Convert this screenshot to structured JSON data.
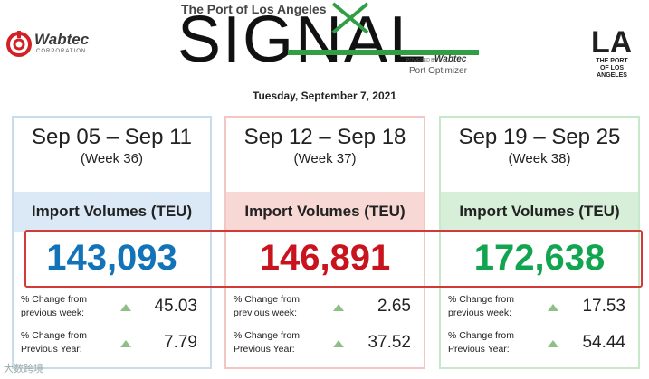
{
  "header": {
    "left_logo": {
      "name": "Wabtec",
      "subtitle": "CORPORATION"
    },
    "signal_subtitle": "The Port of Los Angeles",
    "signal_word": "SIGNAL",
    "powered_by": "POWERED BY",
    "powered_brand": "Wabtec",
    "product": "Port Optimizer",
    "right_logo": {
      "name": "LA",
      "subtitle_line1": "THE PORT",
      "subtitle_line2": "OF LOS ANGELES"
    },
    "date": "Tuesday, September 7, 2021"
  },
  "colors": {
    "blue": "#1273b8",
    "red": "#c8141e",
    "green": "#12a550",
    "highlight": "#d23a3a",
    "arrow_up": "#8fbf84"
  },
  "cards": [
    {
      "range": "Sep 05 – Sep 11",
      "week": "(Week 36)",
      "band_label": "Import Volumes (TEU)",
      "volume": "143,093",
      "change_week_label_1": "% Change from",
      "change_week_label_2": "previous week:",
      "change_week_value": "45.03",
      "change_year_label_1": "% Change from",
      "change_year_label_2": "Previous Year:",
      "change_year_value": "7.79"
    },
    {
      "range": "Sep 12 – Sep 18",
      "week": "(Week 37)",
      "band_label": "Import Volumes (TEU)",
      "volume": "146,891",
      "change_week_label_1": "% Change from",
      "change_week_label_2": "previous week:",
      "change_week_value": "2.65",
      "change_year_label_1": "% Change from",
      "change_year_label_2": "Previous Year:",
      "change_year_value": "37.52"
    },
    {
      "range": "Sep 19 – Sep 25",
      "week": "(Week 38)",
      "band_label": "Import Volumes (TEU)",
      "volume": "172,638",
      "change_week_label_1": "% Change from",
      "change_week_label_2": "previous week:",
      "change_week_value": "17.53",
      "change_year_label_1": "% Change from",
      "change_year_label_2": "Previous Year:",
      "change_year_value": "54.44"
    }
  ],
  "watermark": "大数跨境"
}
